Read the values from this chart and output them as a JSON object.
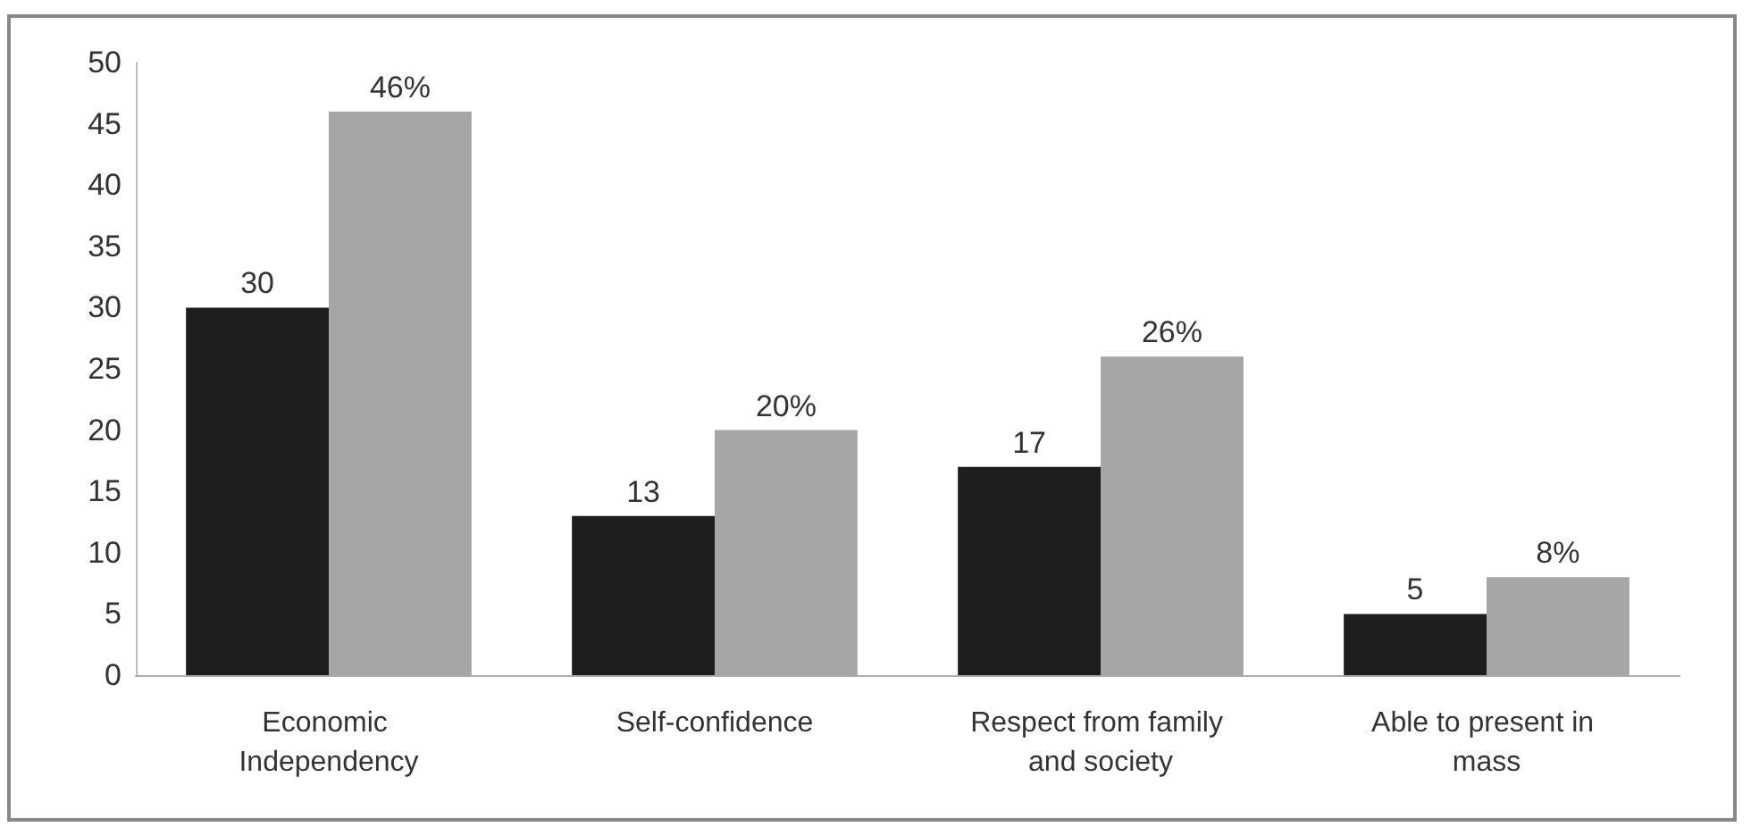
{
  "chart_data": {
    "type": "bar",
    "categories": [
      "Economic Independency",
      "Self-confidence",
      "Respect from family and society",
      "Able to present in mass"
    ],
    "series": [
      {
        "color": "#1e1e1e",
        "values": [
          30,
          13,
          17,
          5
        ],
        "value_labels": [
          "30",
          "13",
          "17",
          "5"
        ]
      },
      {
        "color": "#a6a6a6",
        "values": [
          46,
          20,
          26,
          8
        ],
        "value_labels": [
          "46%",
          "20%",
          "26%",
          "8%"
        ]
      }
    ],
    "ylim": [
      0,
      50
    ],
    "yticks": [
      0,
      5,
      10,
      15,
      20,
      25,
      30,
      35,
      40,
      45,
      50
    ],
    "grid": false
  }
}
